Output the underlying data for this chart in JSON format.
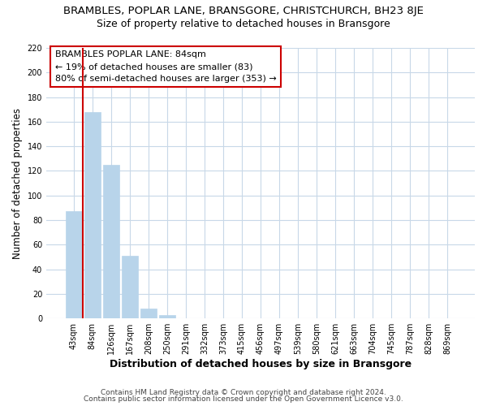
{
  "title": "BRAMBLES, POPLAR LANE, BRANSGORE, CHRISTCHURCH, BH23 8JE",
  "subtitle": "Size of property relative to detached houses in Bransgore",
  "xlabel": "Distribution of detached houses by size in Bransgore",
  "ylabel": "Number of detached properties",
  "bar_values": [
    87,
    168,
    125,
    51,
    8,
    3,
    0,
    0,
    0,
    0,
    0,
    0,
    0,
    0,
    0,
    0,
    0,
    0,
    0,
    0,
    0
  ],
  "bar_labels": [
    "43sqm",
    "84sqm",
    "126sqm",
    "167sqm",
    "208sqm",
    "250sqm",
    "291sqm",
    "332sqm",
    "373sqm",
    "415sqm",
    "456sqm",
    "497sqm",
    "539sqm",
    "580sqm",
    "621sqm",
    "663sqm",
    "704sqm",
    "745sqm",
    "787sqm",
    "828sqm",
    "869sqm"
  ],
  "bar_color": "#b8d4ea",
  "vline_x_index": 1,
  "ylim": [
    0,
    220
  ],
  "yticks": [
    0,
    20,
    40,
    60,
    80,
    100,
    120,
    140,
    160,
    180,
    200,
    220
  ],
  "annotation_title": "BRAMBLES POPLAR LANE: 84sqm",
  "annotation_line1": "← 19% of detached houses are smaller (83)",
  "annotation_line2": "80% of semi-detached houses are larger (353) →",
  "footer1": "Contains HM Land Registry data © Crown copyright and database right 2024.",
  "footer2": "Contains public sector information licensed under the Open Government Licence v3.0.",
  "background_color": "#ffffff",
  "grid_color": "#c8d8e8",
  "box_edge_color": "#cc0000",
  "vline_color": "#cc0000",
  "title_fontsize": 9.5,
  "subtitle_fontsize": 9,
  "ylabel_fontsize": 8.5,
  "xlabel_fontsize": 9,
  "tick_fontsize": 7,
  "annotation_fontsize": 8,
  "footer_fontsize": 6.5
}
